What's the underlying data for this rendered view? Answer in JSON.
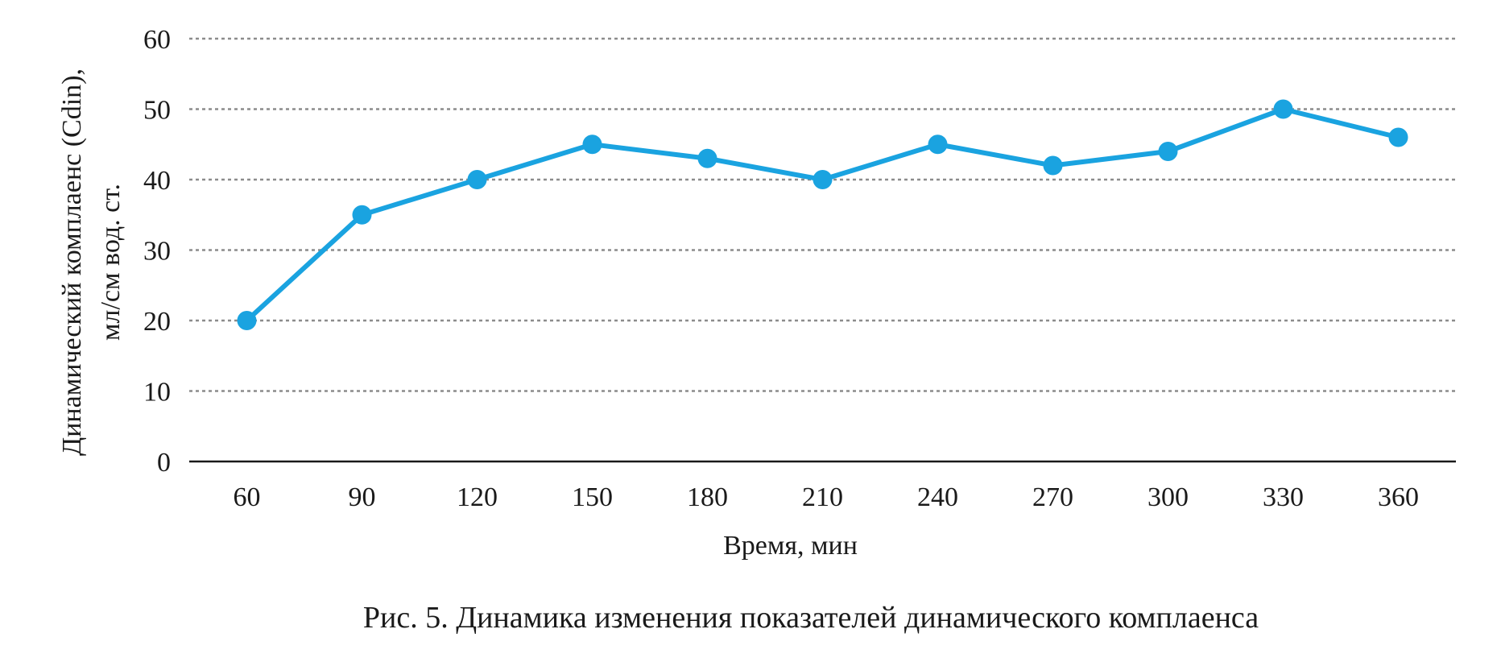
{
  "chart_data": {
    "type": "line",
    "x": [
      60,
      90,
      120,
      150,
      180,
      210,
      240,
      270,
      300,
      330,
      360
    ],
    "series": [
      {
        "values": [
          20,
          35,
          40,
          45,
          43,
          40,
          45,
          42,
          44,
          50,
          46
        ]
      }
    ],
    "xlabel": "Время, мин",
    "ylabel_line1": "Динамический комплаенс (Cdin),",
    "ylabel_line2": "мл/см вод. ст.",
    "ylim": [
      0,
      60
    ],
    "yticks": [
      0,
      10,
      20,
      30,
      40,
      50,
      60
    ],
    "grid": "horizontal dashed",
    "line_color": "#1aa3e0",
    "grid_color": "#8c8c8c"
  },
  "caption": "Рис. 5. Динамика изменения показателей динамического комплаенса"
}
